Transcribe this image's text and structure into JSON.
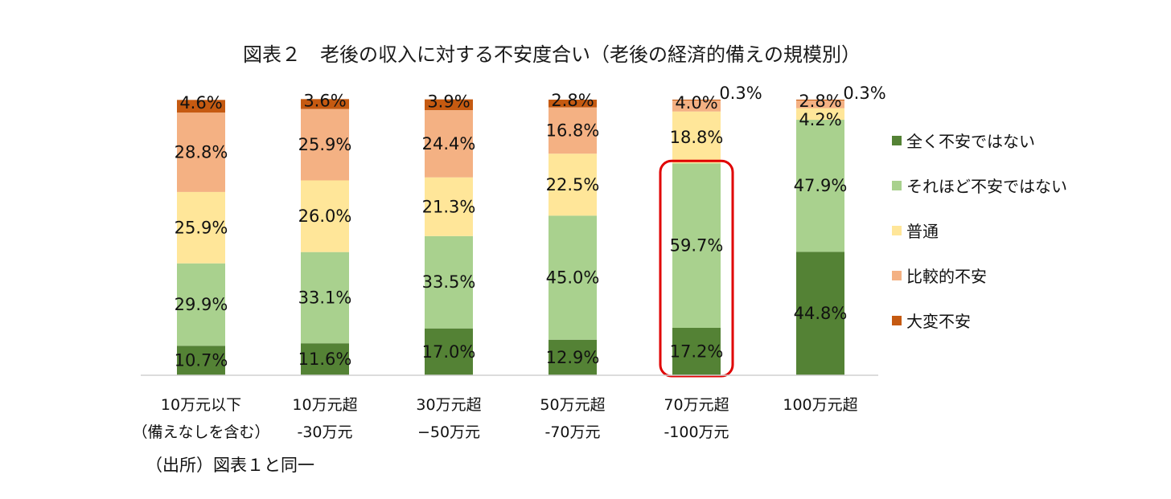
{
  "chart_data": {
    "type": "bar",
    "stacked": true,
    "title": "図表２　老後の収入に対する不安度合い（老後の経済的備えの規模別）",
    "categories": [
      [
        "10万元以下",
        "（備えなしを含む）"
      ],
      [
        "10万元超",
        "-30万元"
      ],
      [
        "30万元超",
        "−50万元"
      ],
      [
        "50万元超",
        "-70万元"
      ],
      [
        "70万元超",
        "-100万元"
      ],
      [
        "100万元超"
      ]
    ],
    "series": [
      {
        "name": "全く不安ではない",
        "color": "#548235",
        "values": [
          10.7,
          11.6,
          17.0,
          12.9,
          17.2,
          44.8
        ],
        "labels": [
          "10.7%",
          "11.6%",
          "17.0%",
          "12.9%",
          "17.2%",
          "44.8%"
        ]
      },
      {
        "name": "それほど不安ではない",
        "color": "#a9d18e",
        "values": [
          29.9,
          33.1,
          33.5,
          45.0,
          59.7,
          47.9
        ],
        "labels": [
          "29.9%",
          "33.1%",
          "33.5%",
          "45.0%",
          "59.7%",
          "47.9%"
        ]
      },
      {
        "name": "普通",
        "color": "#ffe699",
        "values": [
          25.9,
          26.0,
          21.3,
          22.5,
          18.8,
          4.2
        ],
        "labels": [
          "25.9%",
          "26.0%",
          "21.3%",
          "22.5%",
          "18.8%",
          "4.2%"
        ]
      },
      {
        "name": "比較的不安",
        "color": "#f4b183",
        "values": [
          28.8,
          25.9,
          24.4,
          16.8,
          4.0,
          2.8
        ],
        "labels": [
          "28.8%",
          "25.9%",
          "24.4%",
          "16.8%",
          "4.0%",
          "2.8%"
        ]
      },
      {
        "name": "大変不安",
        "color": "#c55a11",
        "values": [
          4.6,
          3.6,
          3.9,
          2.8,
          0.3,
          0.3
        ],
        "labels": [
          "4.6%",
          "3.6%",
          "3.9%",
          "2.8%",
          "0.3%",
          "0.3%"
        ]
      }
    ],
    "ylim": [
      0,
      100
    ],
    "grid": false,
    "legend": "right",
    "highlight_category_index": 4,
    "highlight_color": "#e00000"
  },
  "source_note": "（出所）図表１と同一"
}
